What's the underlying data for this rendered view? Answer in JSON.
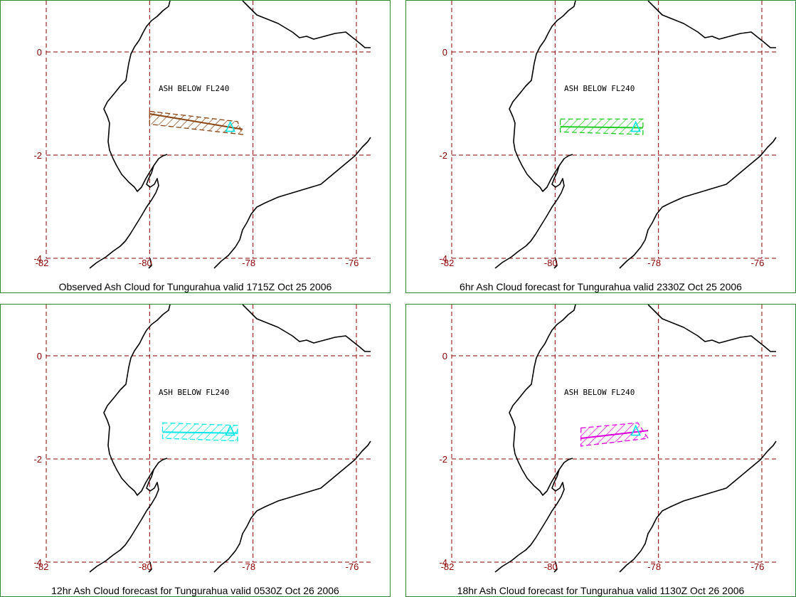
{
  "grid": {
    "lon_ticks": [
      "-82",
      "-80",
      "-78",
      "-76"
    ],
    "lat_ticks": [
      "0",
      "-2",
      "-4"
    ],
    "lon_values": [
      -82,
      -80,
      -78,
      -76
    ],
    "lat_values": [
      0,
      -2,
      -4
    ]
  },
  "panels": [
    {
      "caption": "Observed Ash Cloud for Tungurahua valid 1715Z Oct 25 2006",
      "ash_label": "ASH BELOW FL240",
      "color": "#8b4513",
      "region": [
        [
          -80.0,
          -1.15
        ],
        [
          -78.3,
          -1.35
        ],
        [
          -78.2,
          -1.6
        ],
        [
          -80.0,
          -1.4
        ]
      ],
      "axis": [
        [
          -80.0,
          -1.2
        ],
        [
          -78.2,
          -1.5
        ]
      ]
    },
    {
      "caption": "6hr Ash Cloud forecast for Tungurahua valid 2330Z Oct 25 2006",
      "ash_label": "ASH BELOW FL240",
      "color": "#22cc22",
      "region": [
        [
          -79.9,
          -1.3
        ],
        [
          -78.3,
          -1.3
        ],
        [
          -78.3,
          -1.6
        ],
        [
          -79.9,
          -1.55
        ]
      ],
      "axis": [
        [
          -79.9,
          -1.45
        ],
        [
          -78.3,
          -1.47
        ]
      ]
    },
    {
      "caption": "12hr Ash Cloud forecast for Tungurahua valid 0530Z Oct 26 2006",
      "ash_label": "ASH BELOW FL240",
      "color": "#00e5e5",
      "region": [
        [
          -79.75,
          -1.3
        ],
        [
          -78.3,
          -1.35
        ],
        [
          -78.3,
          -1.65
        ],
        [
          -79.75,
          -1.6
        ]
      ],
      "axis": [
        [
          -79.75,
          -1.48
        ],
        [
          -78.3,
          -1.5
        ]
      ]
    },
    {
      "caption": "18hr Ash Cloud forecast for Tungurahua valid 1130Z Oct 26 2006",
      "ash_label": "ASH BELOW FL240",
      "color": "#dd00dd",
      "region": [
        [
          -79.5,
          -1.4
        ],
        [
          -78.4,
          -1.3
        ],
        [
          -78.2,
          -1.6
        ],
        [
          -79.5,
          -1.75
        ]
      ],
      "axis": [
        [
          -79.5,
          -1.6
        ],
        [
          -78.2,
          -1.45
        ]
      ]
    }
  ],
  "volcano": {
    "name_color": "#00e5e5"
  }
}
